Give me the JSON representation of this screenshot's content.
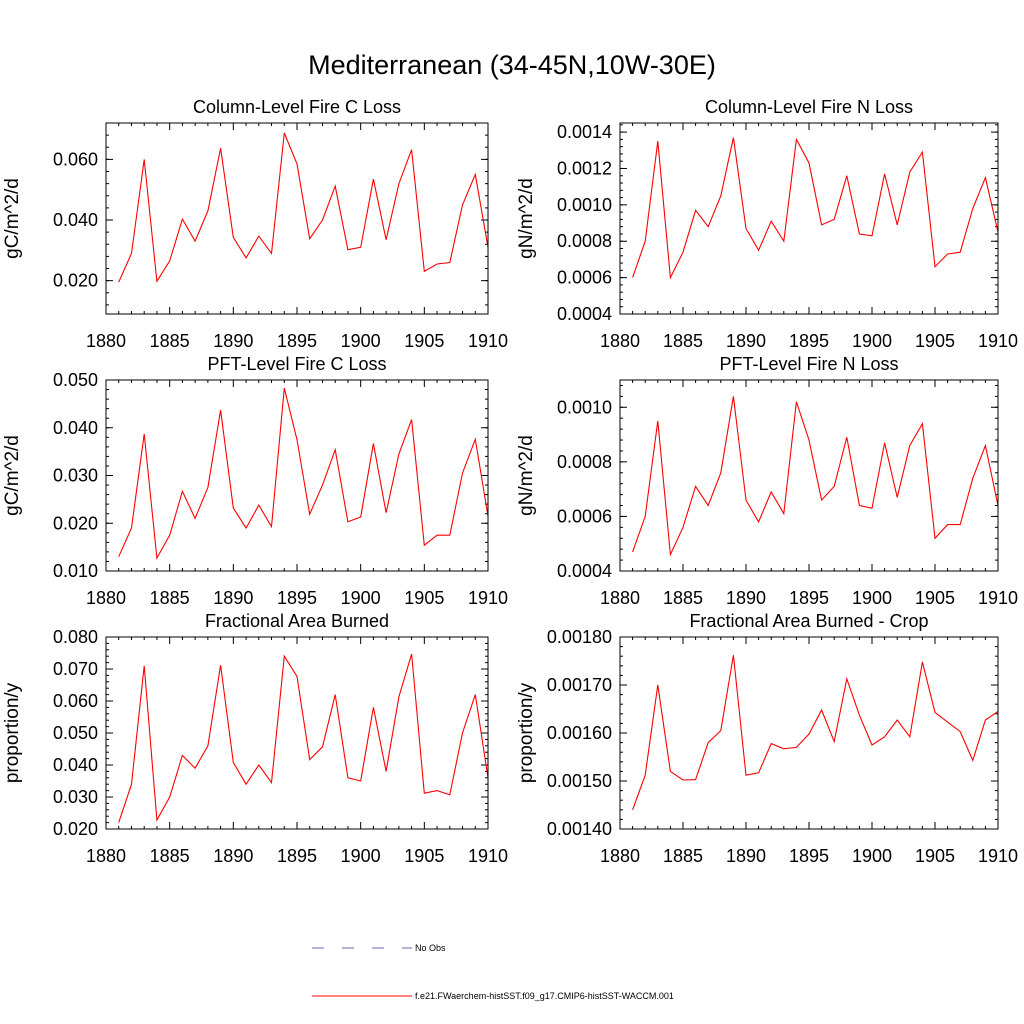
{
  "main_title": "Mediterranean (34-45N,10W-30E)",
  "legend": {
    "obs_label": "No Obs",
    "obs_color": "#6a6ab0",
    "model_label": "f.e21.FWaerchem-histSST.f09_g17.CMIP6-histSST-WACCM.001",
    "model_color": "#ff0000"
  },
  "chart_data": [
    {
      "type": "line",
      "title": "Column-Level Fire C Loss",
      "ylabel": "gC/m^2/d",
      "xlim": [
        1880,
        1910
      ],
      "ylim": [
        0.009,
        0.072
      ],
      "xticks": [
        1880,
        1885,
        1890,
        1895,
        1900,
        1905,
        1910
      ],
      "yticks": [
        0.02,
        0.04,
        0.06
      ],
      "ytick_labels": [
        "0.020",
        "0.040",
        "0.060"
      ],
      "x": [
        1881,
        1882,
        1883,
        1884,
        1885,
        1886,
        1887,
        1888,
        1889,
        1890,
        1891,
        1892,
        1893,
        1894,
        1895,
        1896,
        1897,
        1898,
        1899,
        1900,
        1901,
        1902,
        1903,
        1904,
        1905,
        1906,
        1907,
        1908,
        1909,
        1910
      ],
      "series": [
        {
          "values": [
            0.0195,
            0.029,
            0.06,
            0.0198,
            0.0265,
            0.0403,
            0.033,
            0.043,
            0.0637,
            0.0343,
            0.0275,
            0.0347,
            0.029,
            0.0687,
            0.0585,
            0.0338,
            0.04,
            0.0512,
            0.0302,
            0.031,
            0.0535,
            0.0335,
            0.052,
            0.0632,
            0.0231,
            0.0255,
            0.026,
            0.045,
            0.055,
            0.031
          ]
        }
      ]
    },
    {
      "type": "line",
      "title": "Column-Level Fire N Loss",
      "ylabel": "gN/m^2/d",
      "xlim": [
        1880,
        1910
      ],
      "ylim": [
        0.0004,
        0.00145
      ],
      "xticks": [
        1880,
        1885,
        1890,
        1895,
        1900,
        1905,
        1910
      ],
      "yticks": [
        0.0004,
        0.0006,
        0.0008,
        0.001,
        0.0012,
        0.0014
      ],
      "ytick_labels": [
        "0.0004",
        "0.0006",
        "0.0008",
        "0.0010",
        "0.0012",
        "0.0014"
      ],
      "x": [
        1881,
        1882,
        1883,
        1884,
        1885,
        1886,
        1887,
        1888,
        1889,
        1890,
        1891,
        1892,
        1893,
        1894,
        1895,
        1896,
        1897,
        1898,
        1899,
        1900,
        1901,
        1902,
        1903,
        1904,
        1905,
        1906,
        1907,
        1908,
        1909,
        1910
      ],
      "series": [
        {
          "values": [
            0.0006,
            0.0008,
            0.00135,
            0.0006,
            0.00074,
            0.00097,
            0.00088,
            0.00105,
            0.00137,
            0.00087,
            0.00075,
            0.00091,
            0.0008,
            0.00136,
            0.00123,
            0.00089,
            0.00092,
            0.00116,
            0.00084,
            0.00083,
            0.00117,
            0.00089,
            0.00118,
            0.00129,
            0.00066,
            0.00073,
            0.00074,
            0.00098,
            0.00115,
            0.00085
          ]
        }
      ]
    },
    {
      "type": "line",
      "title": "PFT-Level Fire C Loss",
      "ylabel": "gC/m^2/d",
      "xlim": [
        1880,
        1910
      ],
      "ylim": [
        0.01,
        0.05
      ],
      "xticks": [
        1880,
        1885,
        1890,
        1895,
        1900,
        1905,
        1910
      ],
      "yticks": [
        0.01,
        0.02,
        0.03,
        0.04,
        0.05
      ],
      "ytick_labels": [
        "0.010",
        "0.020",
        "0.030",
        "0.040",
        "0.050"
      ],
      "x": [
        1881,
        1882,
        1883,
        1884,
        1885,
        1886,
        1887,
        1888,
        1889,
        1890,
        1891,
        1892,
        1893,
        1894,
        1895,
        1896,
        1897,
        1898,
        1899,
        1900,
        1901,
        1902,
        1903,
        1904,
        1905,
        1906,
        1907,
        1908,
        1909,
        1910
      ],
      "series": [
        {
          "values": [
            0.013,
            0.019,
            0.0387,
            0.0127,
            0.0175,
            0.0267,
            0.021,
            0.0275,
            0.0437,
            0.0232,
            0.019,
            0.0238,
            0.0193,
            0.0483,
            0.0375,
            0.0219,
            0.028,
            0.0354,
            0.0203,
            0.0213,
            0.0367,
            0.0222,
            0.0345,
            0.0417,
            0.0154,
            0.0175,
            0.0175,
            0.0305,
            0.0376,
            0.0215
          ]
        }
      ]
    },
    {
      "type": "line",
      "title": "PFT-Level Fire N Loss",
      "ylabel": "gN/m^2/d",
      "xlim": [
        1880,
        1910
      ],
      "ylim": [
        0.0004,
        0.0011
      ],
      "xticks": [
        1880,
        1885,
        1890,
        1895,
        1900,
        1905,
        1910
      ],
      "yticks": [
        0.0004,
        0.0006,
        0.0008,
        0.001
      ],
      "ytick_labels": [
        "0.0004",
        "0.0006",
        "0.0008",
        "0.0010"
      ],
      "x": [
        1881,
        1882,
        1883,
        1884,
        1885,
        1886,
        1887,
        1888,
        1889,
        1890,
        1891,
        1892,
        1893,
        1894,
        1895,
        1896,
        1897,
        1898,
        1899,
        1900,
        1901,
        1902,
        1903,
        1904,
        1905,
        1906,
        1907,
        1908,
        1909,
        1910
      ],
      "series": [
        {
          "values": [
            0.00047,
            0.0006,
            0.00095,
            0.00046,
            0.00056,
            0.00071,
            0.00064,
            0.00076,
            0.00104,
            0.00066,
            0.00058,
            0.00069,
            0.00061,
            0.00102,
            0.00088,
            0.00066,
            0.00071,
            0.00089,
            0.00064,
            0.00063,
            0.00087,
            0.00067,
            0.00086,
            0.00094,
            0.00052,
            0.00057,
            0.00057,
            0.00074,
            0.00086,
            0.00064
          ]
        }
      ]
    },
    {
      "type": "line",
      "title": "Fractional Area Burned",
      "ylabel": "proportion/y",
      "xlim": [
        1880,
        1910
      ],
      "ylim": [
        0.02,
        0.08
      ],
      "xticks": [
        1880,
        1885,
        1890,
        1895,
        1900,
        1905,
        1910
      ],
      "yticks": [
        0.02,
        0.03,
        0.04,
        0.05,
        0.06,
        0.07,
        0.08
      ],
      "ytick_labels": [
        "0.020",
        "0.030",
        "0.040",
        "0.050",
        "0.060",
        "0.070",
        "0.080"
      ],
      "x": [
        1881,
        1882,
        1883,
        1884,
        1885,
        1886,
        1887,
        1888,
        1889,
        1890,
        1891,
        1892,
        1893,
        1894,
        1895,
        1896,
        1897,
        1898,
        1899,
        1900,
        1901,
        1902,
        1903,
        1904,
        1905,
        1906,
        1907,
        1908,
        1909,
        1910
      ],
      "series": [
        {
          "values": [
            0.022,
            0.034,
            0.071,
            0.0228,
            0.03,
            0.043,
            0.039,
            0.046,
            0.0712,
            0.0408,
            0.034,
            0.04,
            0.0345,
            0.074,
            0.0677,
            0.0417,
            0.0457,
            0.062,
            0.036,
            0.035,
            0.058,
            0.038,
            0.0613,
            0.0747,
            0.0312,
            0.032,
            0.0307,
            0.05,
            0.062,
            0.036
          ]
        }
      ]
    },
    {
      "type": "line",
      "title": "Fractional Area Burned - Crop",
      "ylabel": "proportion/y",
      "xlim": [
        1880,
        1910
      ],
      "ylim": [
        0.0014,
        0.0018
      ],
      "xticks": [
        1880,
        1885,
        1890,
        1895,
        1900,
        1905,
        1910
      ],
      "yticks": [
        0.0014,
        0.0015,
        0.0016,
        0.0017,
        0.0018
      ],
      "ytick_labels": [
        "0.00140",
        "0.00150",
        "0.00160",
        "0.00170",
        "0.00180"
      ],
      "x": [
        1881,
        1882,
        1883,
        1884,
        1885,
        1886,
        1887,
        1888,
        1889,
        1890,
        1891,
        1892,
        1893,
        1894,
        1895,
        1896,
        1897,
        1898,
        1899,
        1900,
        1901,
        1902,
        1903,
        1904,
        1905,
        1906,
        1907,
        1908,
        1909,
        1910
      ],
      "series": [
        {
          "values": [
            0.00144,
            0.001512,
            0.0017,
            0.00152,
            0.001502,
            0.001503,
            0.00158,
            0.001605,
            0.001762,
            0.001512,
            0.001517,
            0.001578,
            0.001567,
            0.00157,
            0.001598,
            0.001648,
            0.001582,
            0.001713,
            0.001637,
            0.001575,
            0.001592,
            0.001627,
            0.001592,
            0.001748,
            0.001643,
            0.001623,
            0.001603,
            0.001543,
            0.001627,
            0.001645
          ]
        }
      ]
    }
  ]
}
